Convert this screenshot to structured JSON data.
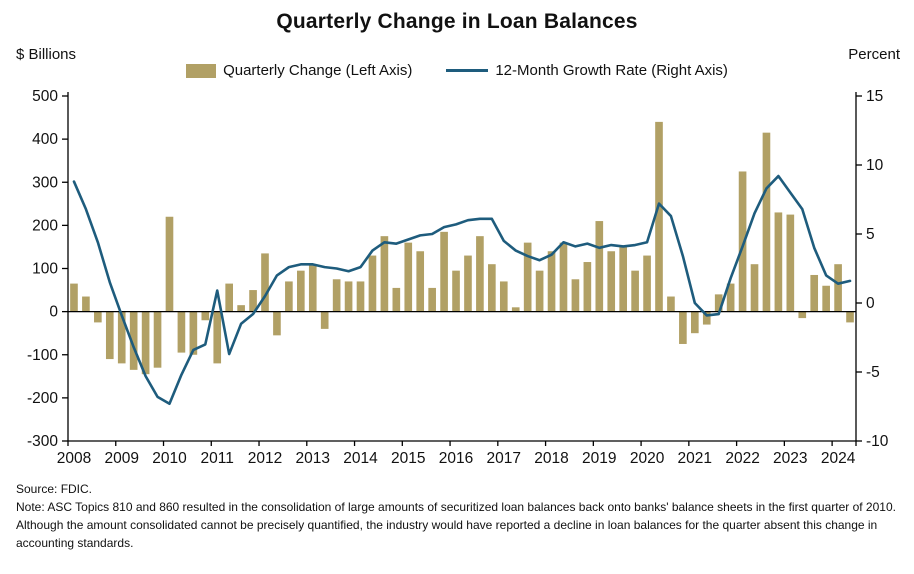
{
  "title": "Quarterly Change in Loan Balances",
  "left_axis_unit": "$ Billions",
  "right_axis_unit": "Percent",
  "legend": {
    "bar_label": "Quarterly Change (Left Axis)",
    "line_label": "12-Month Growth Rate (Right Axis)"
  },
  "source": "Source: FDIC.",
  "note": "Note: ASC Topics 810 and 860 resulted in the consolidation of large amounts of securitized loan balances back onto banks' balance sheets in the first quarter of 2010. Although the amount consolidated cannot be precisely quantified, the industry would have reported a decline in loan balances for the quarter absent this change in accounting standards.",
  "colors": {
    "bar": "#b1a065",
    "line": "#1e5c7d",
    "axis": "#000000",
    "text": "#111111"
  },
  "chart_data": {
    "type": "bar",
    "subtype": "bar+line dual axis",
    "title": "Quarterly Change in Loan Balances",
    "x_year_labels": [
      "2008",
      "2009",
      "2010",
      "2011",
      "2012",
      "2013",
      "2014",
      "2015",
      "2016",
      "2017",
      "2018",
      "2019",
      "2020",
      "2021",
      "2022",
      "2023",
      "2024"
    ],
    "quarters": [
      "2008Q1",
      "2008Q2",
      "2008Q3",
      "2008Q4",
      "2009Q1",
      "2009Q2",
      "2009Q3",
      "2009Q4",
      "2010Q1",
      "2010Q2",
      "2010Q3",
      "2010Q4",
      "2011Q1",
      "2011Q2",
      "2011Q3",
      "2011Q4",
      "2012Q1",
      "2012Q2",
      "2012Q3",
      "2012Q4",
      "2013Q1",
      "2013Q2",
      "2013Q3",
      "2013Q4",
      "2014Q1",
      "2014Q2",
      "2014Q3",
      "2014Q4",
      "2015Q1",
      "2015Q2",
      "2015Q3",
      "2015Q4",
      "2016Q1",
      "2016Q2",
      "2016Q3",
      "2016Q4",
      "2017Q1",
      "2017Q2",
      "2017Q3",
      "2017Q4",
      "2018Q1",
      "2018Q2",
      "2018Q3",
      "2018Q4",
      "2019Q1",
      "2019Q2",
      "2019Q3",
      "2019Q4",
      "2020Q1",
      "2020Q2",
      "2020Q3",
      "2020Q4",
      "2021Q1",
      "2021Q2",
      "2021Q3",
      "2021Q4",
      "2022Q1",
      "2022Q2",
      "2022Q3",
      "2022Q4",
      "2023Q1",
      "2023Q2",
      "2023Q3",
      "2023Q4",
      "2024Q1",
      "2024Q2"
    ],
    "series": [
      {
        "name": "Quarterly Change (Left Axis)",
        "type": "bar",
        "axis": "left",
        "values": [
          65,
          35,
          -25,
          -110,
          -120,
          -135,
          -145,
          -130,
          220,
          -95,
          -100,
          -20,
          -120,
          65,
          15,
          50,
          135,
          -55,
          70,
          95,
          110,
          -40,
          75,
          70,
          70,
          130,
          175,
          55,
          160,
          140,
          55,
          185,
          95,
          130,
          175,
          110,
          70,
          10,
          160,
          95,
          140,
          160,
          75,
          115,
          210,
          140,
          150,
          95,
          130,
          440,
          35,
          -75,
          -50,
          -30,
          40,
          65,
          325,
          110,
          415,
          230,
          225,
          -15,
          85,
          60,
          110,
          -25
        ]
      },
      {
        "name": "12-Month Growth Rate (Right Axis)",
        "type": "line",
        "axis": "right",
        "values": [
          8.8,
          6.8,
          4.4,
          1.5,
          -0.9,
          -3.2,
          -5.3,
          -6.8,
          -7.3,
          -5.2,
          -3.4,
          -3.0,
          0.9,
          -3.7,
          -1.5,
          -0.8,
          0.5,
          2.0,
          2.6,
          2.8,
          2.8,
          2.6,
          2.5,
          2.3,
          2.6,
          3.8,
          4.4,
          4.3,
          4.6,
          4.9,
          5.0,
          5.5,
          5.7,
          6.0,
          6.1,
          6.1,
          4.5,
          3.8,
          3.4,
          3.1,
          3.5,
          4.4,
          4.1,
          4.3,
          4.0,
          4.2,
          4.1,
          4.2,
          4.4,
          7.2,
          6.3,
          3.4,
          0.0,
          -0.9,
          -0.8,
          1.8,
          4.1,
          6.5,
          8.3,
          9.2,
          8.0,
          6.8,
          4.0,
          2.0,
          1.4,
          1.6
        ]
      }
    ],
    "left_axis": {
      "label": "$ Billions",
      "min": -300,
      "max": 500,
      "ticks": [
        500,
        400,
        300,
        200,
        100,
        0,
        -100,
        -200,
        -300
      ]
    },
    "right_axis": {
      "label": "Percent",
      "min": -10,
      "max": 15,
      "ticks": [
        15,
        10,
        5,
        0,
        -5,
        -10
      ]
    },
    "grid": false,
    "legend_position": "top-center"
  }
}
